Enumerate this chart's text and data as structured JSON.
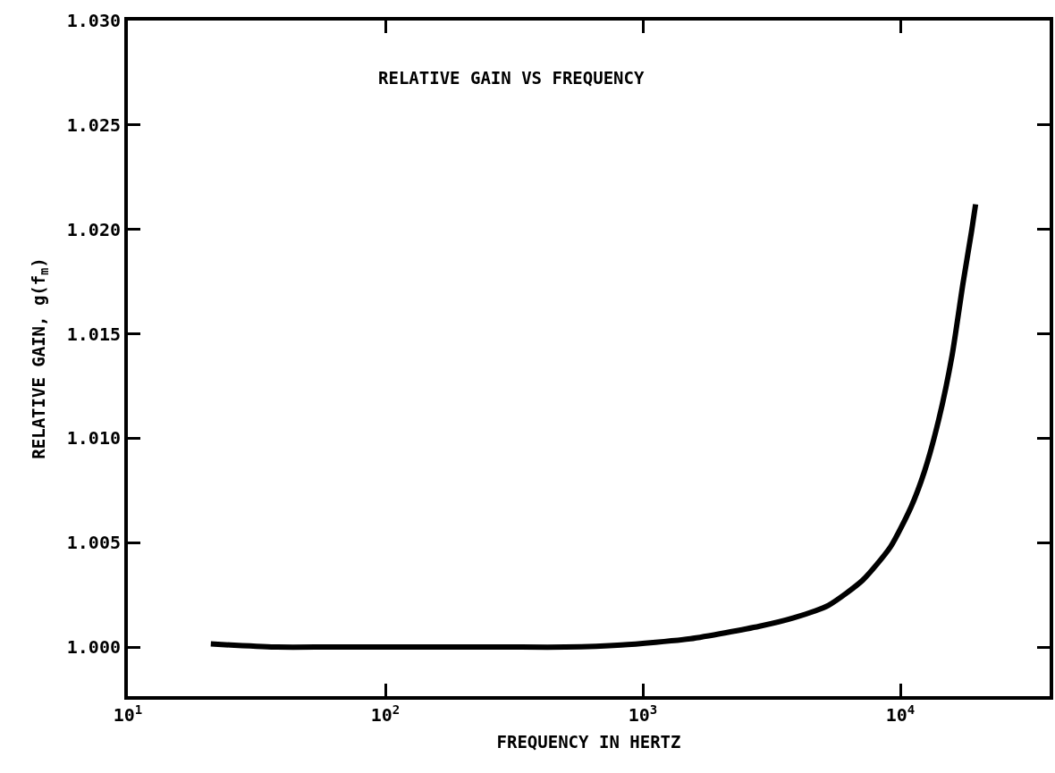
{
  "chart_data": {
    "type": "line",
    "title": "RELATIVE GAIN VS FREQUENCY",
    "xlabel": "FREQUENCY IN HERTZ",
    "ylabel": "RELATIVE GAIN, g(f$_{m}$)",
    "log": "x",
    "x": [
      21,
      25,
      38,
      60,
      100,
      200,
      300,
      500,
      825,
      1530,
      2840,
      3850,
      5260,
      7140,
      9160,
      11000,
      12400,
      14100,
      15900,
      17500,
      18900,
      19600
    ],
    "series": [
      {
        "color": "#000000",
        "values": [
          1.00015,
          1.0001,
          1.0,
          1.0,
          1.0,
          1.0,
          1.0,
          1.0,
          1.0001,
          1.0004,
          1.001,
          1.0014,
          1.002,
          1.0032,
          1.0048,
          1.0067,
          1.0084,
          1.0109,
          1.014,
          1.0174,
          1.0199,
          1.0212
        ]
      }
    ],
    "xlim": [
      10,
      38000
    ],
    "ylim": [
      0.99765,
      1.03
    ],
    "xticks": [
      {
        "value": 10,
        "label": "10$^{1}$"
      },
      {
        "value": 100,
        "label": "10$^{2}$"
      },
      {
        "value": 1000,
        "label": "10$^{3}$"
      },
      {
        "value": 10000,
        "label": "10$^{4}$"
      }
    ],
    "yticks": [
      {
        "value": 1,
        "label": "1.000"
      },
      {
        "value": 1.005,
        "label": "1.005"
      },
      {
        "value": 1.01,
        "label": "1.010"
      },
      {
        "value": 1.015,
        "label": "1.015"
      },
      {
        "value": 1.02,
        "label": "1.020"
      },
      {
        "value": 1.025,
        "label": "1.025"
      },
      {
        "value": 1.03,
        "label": "1.030"
      }
    ],
    "marker": "none",
    "line_style": "solid"
  }
}
